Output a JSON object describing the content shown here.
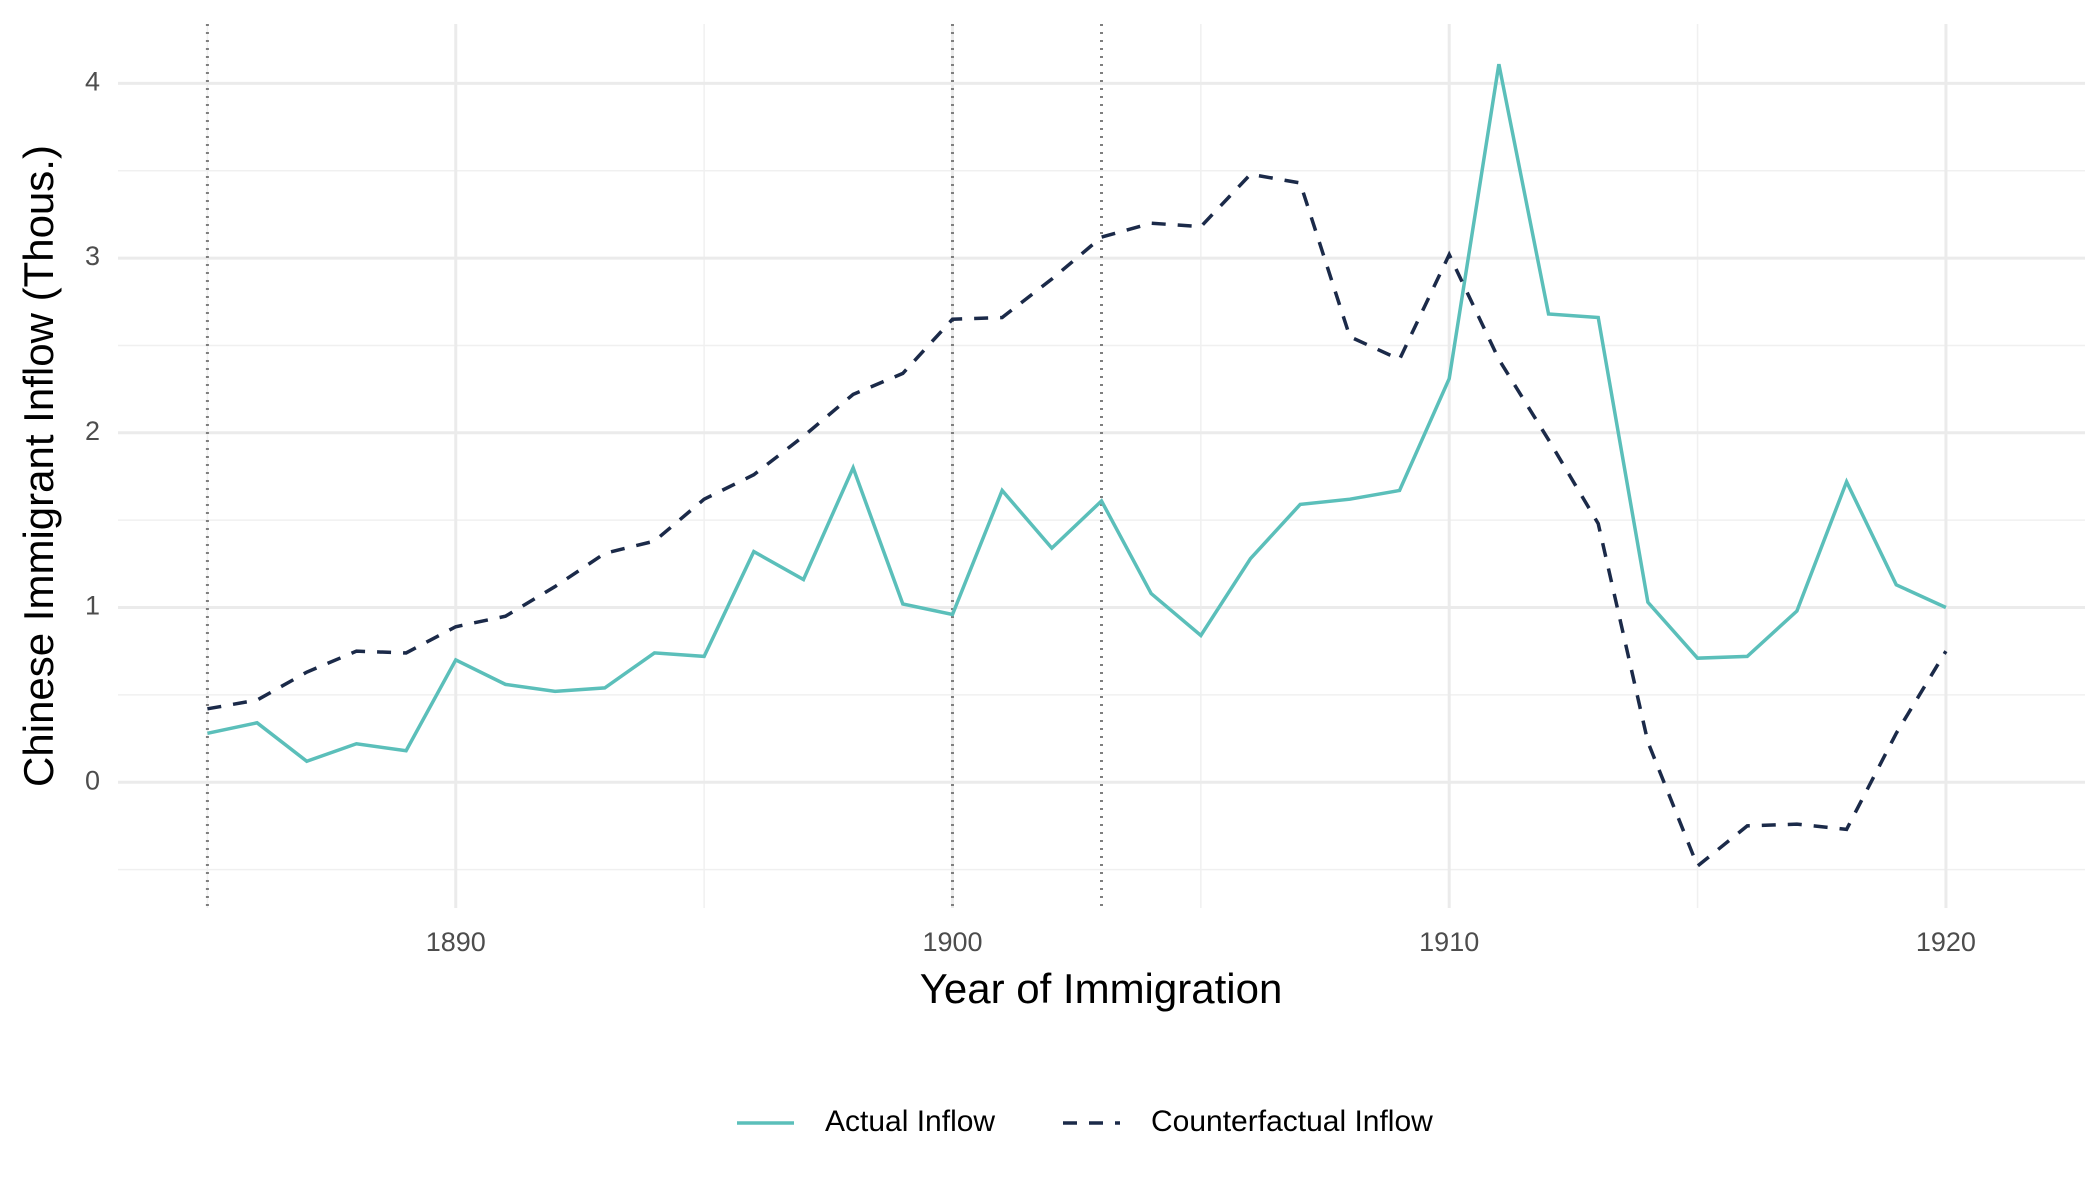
{
  "chart_data": {
    "type": "line",
    "x_label": "Year of Immigration",
    "y_label": "Chinese Immigrant Inflow (Thous.)",
    "x": [
      1885,
      1886,
      1887,
      1888,
      1889,
      1890,
      1891,
      1892,
      1893,
      1894,
      1895,
      1896,
      1897,
      1898,
      1899,
      1900,
      1901,
      1902,
      1903,
      1904,
      1905,
      1906,
      1907,
      1908,
      1909,
      1910,
      1911,
      1912,
      1913,
      1914,
      1915,
      1916,
      1917,
      1918,
      1919,
      1920
    ],
    "series": [
      {
        "name": "Actual Inflow",
        "color": "#5bbfba",
        "dash": "solid",
        "values": [
          0.28,
          0.34,
          0.12,
          0.22,
          0.18,
          0.7,
          0.56,
          0.52,
          0.54,
          0.74,
          0.72,
          1.32,
          1.16,
          1.8,
          1.02,
          0.96,
          1.67,
          1.34,
          1.61,
          1.08,
          0.84,
          1.28,
          1.59,
          1.62,
          1.67,
          2.31,
          4.11,
          2.68,
          2.66,
          1.03,
          0.71,
          0.72,
          0.98,
          1.72,
          1.13,
          1.0
        ]
      },
      {
        "name": "Counterfactual Inflow",
        "color": "#1b2a49",
        "dash": "dashed",
        "values": [
          0.42,
          0.47,
          0.63,
          0.75,
          0.74,
          0.89,
          0.95,
          1.12,
          1.31,
          1.38,
          1.62,
          1.76,
          1.98,
          2.22,
          2.34,
          2.65,
          2.66,
          2.88,
          3.12,
          3.2,
          3.18,
          3.48,
          3.43,
          2.55,
          2.42,
          3.02,
          2.42,
          1.96,
          1.48,
          0.23,
          -0.48,
          -0.25,
          -0.24,
          -0.27,
          0.28,
          0.75
        ]
      }
    ],
    "vlines": [
      1885,
      1900,
      1903
    ],
    "xlim": [
      1883.2,
      1922.8
    ],
    "ylim": [
      -0.72,
      4.34
    ],
    "xticks": [
      1890,
      1900,
      1910,
      1920
    ],
    "yticks": [
      0,
      1,
      2,
      3,
      4
    ],
    "grid": true,
    "legend_position": "bottom"
  }
}
